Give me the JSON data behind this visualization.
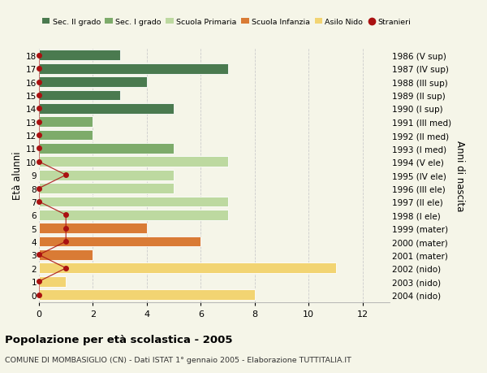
{
  "ages": [
    18,
    17,
    16,
    15,
    14,
    13,
    12,
    11,
    10,
    9,
    8,
    7,
    6,
    5,
    4,
    3,
    2,
    1,
    0
  ],
  "right_labels": [
    "1986 (V sup)",
    "1987 (IV sup)",
    "1988 (III sup)",
    "1989 (II sup)",
    "1990 (I sup)",
    "1991 (III med)",
    "1992 (II med)",
    "1993 (I med)",
    "1994 (V ele)",
    "1995 (IV ele)",
    "1996 (III ele)",
    "1997 (II ele)",
    "1998 (I ele)",
    "1999 (mater)",
    "2000 (mater)",
    "2001 (mater)",
    "2002 (nido)",
    "2003 (nido)",
    "2004 (nido)"
  ],
  "bar_values": [
    3,
    7,
    4,
    3,
    5,
    2,
    2,
    5,
    7,
    5,
    5,
    7,
    7,
    4,
    6,
    2,
    11,
    1,
    8
  ],
  "bar_colors": [
    "#4a7a4f",
    "#4a7a4f",
    "#4a7a4f",
    "#4a7a4f",
    "#4a7a4f",
    "#7dab6a",
    "#7dab6a",
    "#7dab6a",
    "#bdd9a0",
    "#bdd9a0",
    "#bdd9a0",
    "#bdd9a0",
    "#bdd9a0",
    "#d97b35",
    "#d97b35",
    "#d97b35",
    "#f2d472",
    "#f2d472",
    "#f2d472"
  ],
  "stranieri_values": [
    0,
    0,
    0,
    0,
    0,
    0,
    0,
    0,
    0,
    1,
    0,
    0,
    1,
    1,
    1,
    0,
    1,
    0,
    0
  ],
  "legend_labels": [
    "Sec. II grado",
    "Sec. I grado",
    "Scuola Primaria",
    "Scuola Infanzia",
    "Asilo Nido",
    "Stranieri"
  ],
  "legend_colors": [
    "#4a7a4f",
    "#7dab6a",
    "#bdd9a0",
    "#d97b35",
    "#f2d472",
    "#aa1111"
  ],
  "ylabel_left": "Età alunni",
  "ylabel_right": "Anni di nascita",
  "title": "Popolazione per età scolastica - 2005",
  "subtitle": "COMUNE DI MOMBASIGLIO (CN) - Dati ISTAT 1° gennaio 2005 - Elaborazione TUTTITALIA.IT",
  "xlim": [
    0,
    13
  ],
  "xticks": [
    0,
    2,
    4,
    6,
    8,
    10,
    12
  ],
  "ylim_min": -0.55,
  "ylim_max": 18.55,
  "bg_color": "#f5f5e8",
  "grid_color": "#cccccc",
  "bar_height": 0.78
}
